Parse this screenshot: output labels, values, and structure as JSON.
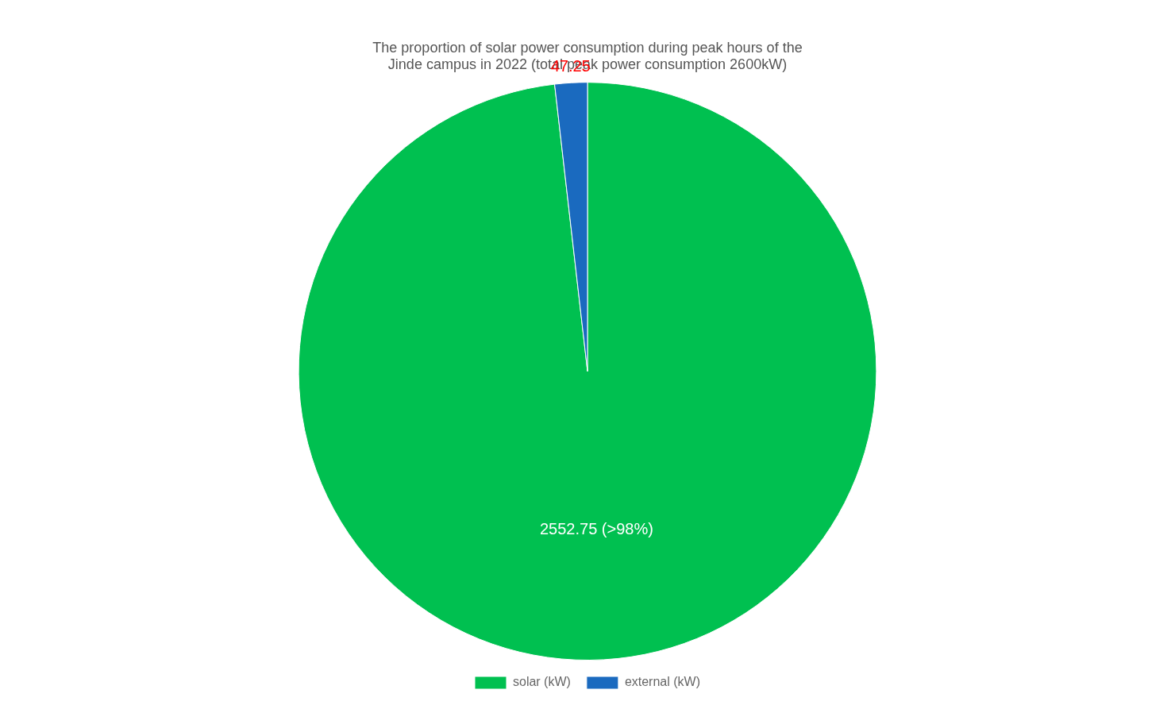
{
  "chart_data": {
    "type": "pie",
    "title": "The proportion of solar power consumption during peak hours of the\nJinde campus in 2022 (total peak power consumption 2600kW)",
    "categories": [
      "solar (kW)",
      "external (kW)"
    ],
    "values": [
      2552.75,
      47.25
    ],
    "value_labels": [
      "2552.75 (>98%)",
      "47.25"
    ],
    "colors": [
      "#00c050",
      "#1a6abf"
    ],
    "data_labels": true,
    "legend": "bottom"
  }
}
